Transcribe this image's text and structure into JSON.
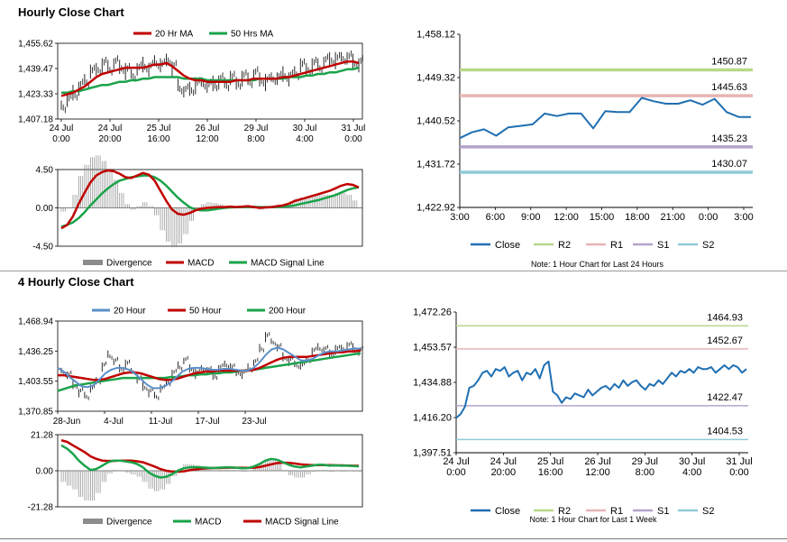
{
  "sections": {
    "hourly_title": "Hourly Close Chart",
    "four_hourly_title": "4 Hourly Close Chart"
  },
  "colors": {
    "price": "#111111",
    "ma_red": "#c00000",
    "ma_green": "#1aa34a",
    "ma_blue": "#5b8fc9",
    "close_blue": "#1f6fb2",
    "r2": "#b8d88a",
    "r1": "#e7b4b4",
    "s1": "#b4a4cc",
    "s2": "#8fcbd8",
    "hist": "#8c8c8c",
    "axis": "#000000"
  },
  "chart_data": [
    {
      "id": "hourly_price_ma",
      "type": "line",
      "legend": [
        "20 Hr MA",
        "50 Hrs MA"
      ],
      "y_ticks": [
        "1,455.62",
        "1,439.47",
        "1,423.33",
        "1,407.18"
      ],
      "ylim": [
        1407.18,
        1455.62
      ],
      "x_ticks": [
        [
          "24 Jul",
          "0:00"
        ],
        [
          "24 Jul",
          "20:00"
        ],
        [
          "25 Jul",
          "16:00"
        ],
        [
          "26 Jul",
          "12:00"
        ],
        [
          "29 Jul",
          "8:00"
        ],
        [
          "30 Jul",
          "4:00"
        ],
        [
          "31 Jul",
          "0:00"
        ]
      ],
      "price": [
        1416,
        1419,
        1424,
        1428,
        1432,
        1437,
        1440,
        1442,
        1440,
        1443,
        1441,
        1438,
        1436,
        1439,
        1442,
        1440,
        1444,
        1441,
        1446,
        1440,
        1428,
        1425,
        1427,
        1429,
        1431,
        1428,
        1430,
        1432,
        1430,
        1433,
        1431,
        1434,
        1432,
        1436,
        1433,
        1431,
        1434,
        1433,
        1436,
        1434,
        1437,
        1441,
        1440,
        1442,
        1441,
        1444,
        1446,
        1445,
        1447,
        1446,
        1444,
        1443
      ],
      "ma20": [
        1422,
        1423,
        1424,
        1426,
        1428,
        1431,
        1434,
        1436,
        1437,
        1438,
        1439,
        1440,
        1440,
        1440,
        1440,
        1441,
        1442,
        1442,
        1443,
        1441,
        1438,
        1435,
        1433,
        1432,
        1432,
        1431,
        1431,
        1431,
        1431,
        1431,
        1432,
        1432,
        1432,
        1433,
        1433,
        1433,
        1433,
        1433,
        1434,
        1434,
        1435,
        1436,
        1437,
        1438,
        1439,
        1440,
        1441,
        1442,
        1443,
        1444,
        1444,
        1443
      ],
      "ma50": [
        1424,
        1424,
        1425,
        1425,
        1426,
        1427,
        1428,
        1429,
        1429,
        1430,
        1431,
        1431,
        1432,
        1432,
        1433,
        1433,
        1434,
        1434,
        1434,
        1434,
        1434,
        1433,
        1433,
        1433,
        1433,
        1432,
        1432,
        1432,
        1432,
        1432,
        1432,
        1432,
        1432,
        1432,
        1433,
        1433,
        1433,
        1433,
        1433,
        1434,
        1434,
        1434,
        1435,
        1435,
        1436,
        1436,
        1437,
        1437,
        1438,
        1439,
        1439,
        1440
      ]
    },
    {
      "id": "hourly_macd",
      "type": "line",
      "legend": [
        "Divergence",
        "MACD",
        "MACD Signal Line"
      ],
      "y_ticks": [
        "4.50",
        "0.00",
        "-4.50"
      ],
      "ylim": [
        -4.5,
        4.5
      ],
      "macd": [
        -2.4,
        -2.0,
        -1.0,
        0.5,
        1.8,
        3.0,
        3.8,
        4.2,
        4.4,
        4.3,
        4.0,
        3.6,
        3.5,
        3.8,
        4.1,
        3.9,
        3.2,
        2.0,
        0.8,
        -0.2,
        -0.7,
        -0.8,
        -0.6,
        -0.3,
        -0.1,
        0.0,
        0.05,
        0.1,
        0.1,
        0.15,
        0.1,
        0.15,
        0.2,
        0.1,
        0.0,
        0.05,
        0.1,
        0.2,
        0.3,
        0.5,
        0.8,
        1.0,
        1.2,
        1.4,
        1.6,
        1.8,
        2.0,
        2.3,
        2.6,
        2.8,
        2.7,
        2.4
      ],
      "signal": [
        -2.2,
        -2.0,
        -1.7,
        -1.2,
        -0.5,
        0.3,
        1.0,
        1.7,
        2.3,
        2.8,
        3.2,
        3.4,
        3.6,
        3.7,
        3.8,
        3.8,
        3.6,
        3.2,
        2.6,
        1.9,
        1.2,
        0.6,
        0.1,
        -0.2,
        -0.3,
        -0.3,
        -0.2,
        -0.1,
        0.0,
        0.05,
        0.08,
        0.1,
        0.12,
        0.12,
        0.1,
        0.1,
        0.1,
        0.12,
        0.15,
        0.2,
        0.3,
        0.45,
        0.6,
        0.75,
        0.9,
        1.1,
        1.3,
        1.5,
        1.8,
        2.1,
        2.3,
        2.4
      ]
    },
    {
      "id": "hourly_close_levels",
      "type": "line",
      "y_ticks": [
        "1,458.12",
        "1,449.32",
        "1,440.52",
        "1,431.72",
        "1,422.92"
      ],
      "ylim": [
        1422.92,
        1458.12
      ],
      "x_ticks": [
        "3:00",
        "6:00",
        "9:00",
        "12:00",
        "15:00",
        "18:00",
        "21:00",
        "0:00",
        "3:00"
      ],
      "close": [
        1437.0,
        1438.2,
        1438.8,
        1437.5,
        1439.2,
        1439.5,
        1439.8,
        1442.0,
        1441.5,
        1442.0,
        1442.0,
        1439.0,
        1442.5,
        1442.3,
        1442.3,
        1445.2,
        1444.5,
        1444.0,
        1444.0,
        1444.7,
        1443.8,
        1445.0,
        1442.3,
        1441.3,
        1441.3
      ],
      "levels": [
        {
          "name": "R2",
          "value": 1450.87,
          "label": "1450.87"
        },
        {
          "name": "R1",
          "value": 1445.63,
          "label": "1445.63"
        },
        {
          "name": "S1",
          "value": 1435.23,
          "label": "1435.23"
        },
        {
          "name": "S2",
          "value": 1430.07,
          "label": "1430.07"
        }
      ],
      "legend": [
        "Close",
        "R2",
        "R1",
        "S1",
        "S2"
      ],
      "note": "Note: 1 Hour Chart for Last 24 Hours"
    },
    {
      "id": "four_hourly_price_ma",
      "type": "line",
      "legend": [
        "20 Hour",
        "50 Hour",
        "200 Hour"
      ],
      "y_ticks": [
        "1,468.94",
        "1,436.25",
        "1,403.55",
        "1,370.85"
      ],
      "ylim": [
        1370.85,
        1468.94
      ],
      "x_ticks": [
        "28-Jun",
        "4-Jul",
        "11-Jul",
        "17-Jul",
        "23-Jul"
      ],
      "price": [
        1415,
        1410,
        1400,
        1392,
        1388,
        1395,
        1405,
        1420,
        1432,
        1425,
        1418,
        1422,
        1415,
        1405,
        1398,
        1392,
        1388,
        1395,
        1403,
        1412,
        1420,
        1426,
        1418,
        1412,
        1418,
        1415,
        1410,
        1418,
        1422,
        1418,
        1414,
        1412,
        1418,
        1424,
        1440,
        1452,
        1447,
        1440,
        1430,
        1426,
        1422,
        1420,
        1428,
        1436,
        1440,
        1438,
        1434,
        1438,
        1440,
        1442,
        1440,
        1437
      ],
      "ma20": [
        1418,
        1414,
        1408,
        1403,
        1398,
        1397,
        1399,
        1405,
        1412,
        1416,
        1418,
        1418,
        1416,
        1412,
        1406,
        1400,
        1396,
        1396,
        1398,
        1402,
        1408,
        1414,
        1417,
        1418,
        1418,
        1417,
        1416,
        1416,
        1417,
        1417,
        1416,
        1415,
        1415,
        1418,
        1424,
        1432,
        1438,
        1440,
        1438,
        1434,
        1430,
        1426,
        1426,
        1428,
        1432,
        1435,
        1436,
        1436,
        1437,
        1438,
        1439,
        1439
      ],
      "ma50": [
        1410,
        1410,
        1409,
        1408,
        1407,
        1406,
        1405,
        1405,
        1406,
        1408,
        1410,
        1412,
        1413,
        1413,
        1412,
        1410,
        1408,
        1406,
        1405,
        1405,
        1406,
        1408,
        1410,
        1412,
        1413,
        1414,
        1414,
        1415,
        1415,
        1415,
        1415,
        1415,
        1415,
        1416,
        1418,
        1421,
        1424,
        1427,
        1429,
        1430,
        1430,
        1430,
        1430,
        1431,
        1432,
        1433,
        1434,
        1435,
        1435,
        1436,
        1436,
        1437
      ],
      "ma200": [
        1393,
        1395,
        1397,
        1399,
        1400,
        1401,
        1402,
        1403,
        1404,
        1405,
        1406,
        1407,
        1407,
        1407,
        1407,
        1407,
        1407,
        1407,
        1407,
        1408,
        1408,
        1409,
        1410,
        1410,
        1411,
        1411,
        1412,
        1412,
        1413,
        1413,
        1414,
        1415,
        1415,
        1416,
        1417,
        1418,
        1419,
        1420,
        1421,
        1422,
        1423,
        1424,
        1425,
        1426,
        1427,
        1428,
        1429,
        1430,
        1431,
        1432,
        1433,
        1434
      ]
    },
    {
      "id": "four_hourly_macd",
      "type": "line",
      "legend": [
        "Divergence",
        "MACD",
        "MACD Signal Line"
      ],
      "y_ticks": [
        "21.28",
        "0.00",
        "-21.28"
      ],
      "ylim": [
        -21.28,
        21.28
      ],
      "macd": [
        15,
        13,
        10,
        6,
        3,
        0.5,
        1,
        3,
        5,
        6,
        6,
        5.5,
        5,
        4,
        2,
        -1,
        -3,
        -4,
        -3.5,
        -2,
        0,
        1.5,
        2,
        2.2,
        2,
        1.8,
        1.6,
        1.8,
        2,
        2,
        1.8,
        1.5,
        1.6,
        2.5,
        4,
        6,
        7,
        6.5,
        5,
        3.5,
        2.5,
        2,
        2.5,
        3,
        3.5,
        3.5,
        3,
        3.2,
        3,
        3,
        2.8,
        2.6
      ],
      "signal": [
        18,
        17,
        15,
        13,
        11,
        8.5,
        7,
        6,
        5.8,
        5.8,
        6,
        6,
        6,
        5.6,
        5,
        3.8,
        2.5,
        1,
        0,
        -0.5,
        -0.6,
        -0.3,
        0.3,
        0.8,
        1.2,
        1.5,
        1.6,
        1.6,
        1.7,
        1.8,
        1.8,
        1.8,
        1.7,
        1.8,
        2.2,
        3,
        3.8,
        4.5,
        4.8,
        4.7,
        4.3,
        3.8,
        3.5,
        3.3,
        3.3,
        3.3,
        3.3,
        3.2,
        3.2,
        3.1,
        3,
        2.9
      ]
    },
    {
      "id": "four_hourly_close_levels",
      "type": "line",
      "y_ticks": [
        "1,472.26",
        "1,453.57",
        "1,434.88",
        "1,416.20",
        "1,397.51"
      ],
      "ylim": [
        1397.51,
        1472.26
      ],
      "x_ticks": [
        [
          "24 Jul",
          "0:00"
        ],
        [
          "24 Jul",
          "20:00"
        ],
        [
          "25 Jul",
          "16:00"
        ],
        [
          "26 Jul",
          "12:00"
        ],
        [
          "29 Jul",
          "8:00"
        ],
        [
          "30 Jul",
          "4:00"
        ],
        [
          "31 Jul",
          "0:00"
        ]
      ],
      "close": [
        1416,
        1418,
        1422,
        1432,
        1433,
        1436,
        1440,
        1441,
        1438,
        1442,
        1441,
        1443,
        1438,
        1440,
        1441,
        1436,
        1440,
        1439,
        1442,
        1437,
        1444,
        1446,
        1430,
        1428,
        1424,
        1427,
        1426,
        1429,
        1428,
        1427,
        1431,
        1428,
        1430,
        1432,
        1433,
        1431,
        1434,
        1432,
        1436,
        1433,
        1435,
        1436,
        1433,
        1431,
        1434,
        1433,
        1436,
        1434,
        1437,
        1440,
        1438,
        1441,
        1440,
        1442,
        1440,
        1443,
        1442,
        1442,
        1443,
        1440,
        1442,
        1444,
        1442,
        1444,
        1443,
        1440,
        1442
      ],
      "levels": [
        {
          "name": "R2",
          "value": 1464.93,
          "label": "1464.93"
        },
        {
          "name": "R1",
          "value": 1452.67,
          "label": "1452.67"
        },
        {
          "name": "S1",
          "value": 1422.47,
          "label": "1422.47"
        },
        {
          "name": "S2",
          "value": 1404.53,
          "label": "1404.53"
        }
      ],
      "legend": [
        "Close",
        "R2",
        "R1",
        "S1",
        "S2"
      ],
      "note": "Note: 1 Hour Chart for Last 1 Week"
    }
  ]
}
